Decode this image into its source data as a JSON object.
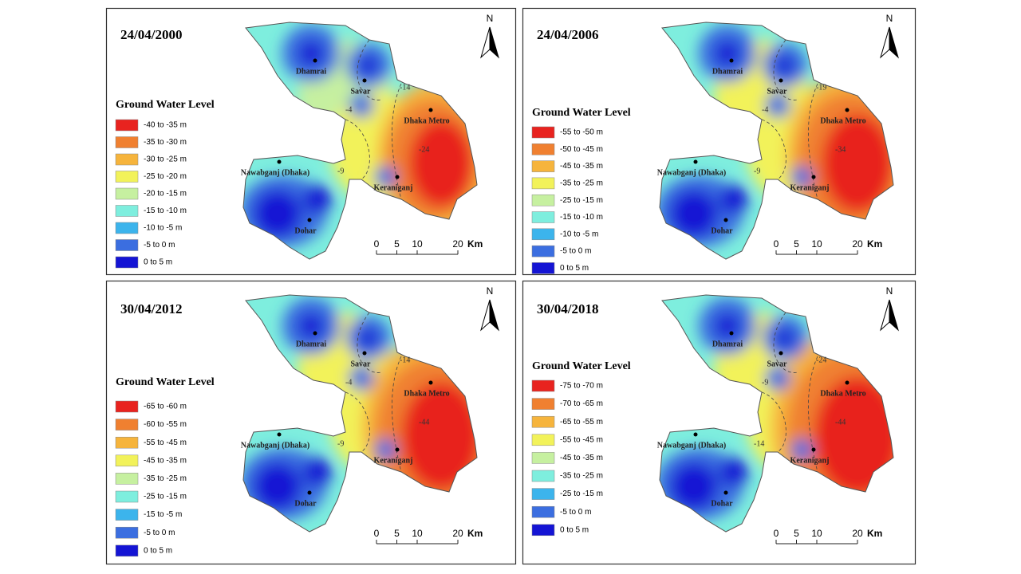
{
  "panels": [
    {
      "date": "24/04/2000",
      "legend": {
        "title": "Ground Water Level",
        "items": [
          {
            "label": "-40 to -35 m",
            "color": "#e8231f"
          },
          {
            "label": "-35 to -30 m",
            "color": "#f08030"
          },
          {
            "label": "-30 to -25 m",
            "color": "#f6b43c"
          },
          {
            "label": "-25 to -20 m",
            "color": "#f2f25a"
          },
          {
            "label": "-20 to -15 m",
            "color": "#c6f0a0"
          },
          {
            "label": "-15 to -10 m",
            "color": "#7eeede"
          },
          {
            "label": "-10 to -5 m",
            "color": "#3cb4ec"
          },
          {
            "label": "-5 to 0 m",
            "color": "#3b6ee0"
          },
          {
            "label": "0 to 5 m",
            "color": "#1414d4"
          }
        ]
      },
      "places": [
        "Dhamrai",
        "Savar",
        "Dhaka Metro",
        "Nawabganj (Dhaka)",
        "Keraniganj",
        "Dohar"
      ],
      "contours": [
        "-4",
        "-9",
        "-14",
        "-24"
      ],
      "scale": {
        "ticks": [
          0,
          5,
          10,
          20
        ],
        "unit": "Km"
      },
      "north": "N"
    },
    {
      "date": "24/04/2006",
      "legend": {
        "title": "Ground Water Level",
        "items": [
          {
            "label": "-55 to -50 m",
            "color": "#e8231f"
          },
          {
            "label": "-50 to -45 m",
            "color": "#f08030"
          },
          {
            "label": "-45 to -35 m",
            "color": "#f6b43c"
          },
          {
            "label": "-35 to -25 m",
            "color": "#f2f25a"
          },
          {
            "label": "-25 to -15 m",
            "color": "#c6f0a0"
          },
          {
            "label": "-15 to -10 m",
            "color": "#7eeede"
          },
          {
            "label": "-10 to -5 m",
            "color": "#3cb4ec"
          },
          {
            "label": "-5 to 0 m",
            "color": "#3b6ee0"
          },
          {
            "label": "0 to 5 m",
            "color": "#1414d4"
          }
        ]
      },
      "places": [
        "Dhamrai",
        "Savar",
        "Dhaka Metro",
        "Nawabganj (Dhaka)",
        "Keraniganj",
        "Dohar"
      ],
      "contours": [
        "-4",
        "-9",
        "-19",
        "-34"
      ],
      "scale": {
        "ticks": [
          0,
          5,
          10,
          20
        ],
        "unit": "Km"
      },
      "north": "N"
    },
    {
      "date": "30/04/2012",
      "legend": {
        "title": "Ground Water Level",
        "items": [
          {
            "label": "-65 to -60 m",
            "color": "#e8231f"
          },
          {
            "label": "-60 to -55 m",
            "color": "#f08030"
          },
          {
            "label": "-55 to -45 m",
            "color": "#f6b43c"
          },
          {
            "label": "-45 to -35 m",
            "color": "#f2f25a"
          },
          {
            "label": "-35 to -25 m",
            "color": "#c6f0a0"
          },
          {
            "label": "-25 to -15 m",
            "color": "#7eeede"
          },
          {
            "label": "-15 to -5 m",
            "color": "#3cb4ec"
          },
          {
            "label": "-5 to 0 m",
            "color": "#3b6ee0"
          },
          {
            "label": "0 to 5 m",
            "color": "#1414d4"
          }
        ]
      },
      "places": [
        "Dhamrai",
        "Savar",
        "Dhaka Metro",
        "Nawabganj (Dhaka)",
        "Keraniganj",
        "Dohar"
      ],
      "contours": [
        "-4",
        "-9",
        "-14",
        "-44"
      ],
      "scale": {
        "ticks": [
          0,
          5,
          10,
          20
        ],
        "unit": "Km"
      },
      "north": "N"
    },
    {
      "date": "30/04/2018",
      "legend": {
        "title": "Ground Water Level",
        "items": [
          {
            "label": "-75 to -70 m",
            "color": "#e8231f"
          },
          {
            "label": "-70 to -65 m",
            "color": "#f08030"
          },
          {
            "label": "-65 to -55 m",
            "color": "#f6b43c"
          },
          {
            "label": "-55 to -45 m",
            "color": "#f2f25a"
          },
          {
            "label": "-45 to -35 m",
            "color": "#c6f0a0"
          },
          {
            "label": "-35 to -25 m",
            "color": "#7eeede"
          },
          {
            "label": "-25 to -15 m",
            "color": "#3cb4ec"
          },
          {
            "label": "-5 to 0 m",
            "color": "#3b6ee0"
          },
          {
            "label": "0 to 5 m",
            "color": "#1414d4"
          }
        ]
      },
      "places": [
        "Dhamrai",
        "Savar",
        "Dhaka Metro",
        "Nawabganj (Dhaka)",
        "Keraniganj",
        "Dohar"
      ],
      "contours": [
        "-9",
        "-14",
        "-24",
        "-44"
      ],
      "scale": {
        "ticks": [
          0,
          5,
          10,
          20
        ],
        "unit": "Km"
      },
      "north": "N"
    }
  ]
}
